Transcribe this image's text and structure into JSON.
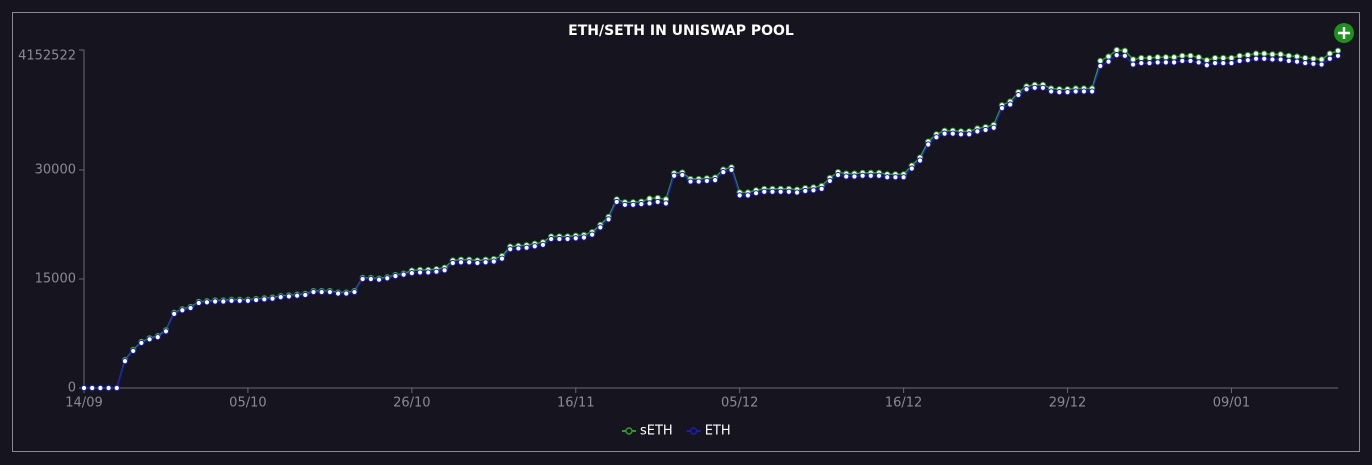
{
  "chart_data": {
    "type": "line",
    "title": "ETH/SETH IN UNISWAP POOL",
    "y_top_label": "4152522",
    "categories": [
      "14/09",
      null,
      null,
      null,
      null,
      null,
      null,
      null,
      null,
      null,
      null,
      null,
      null,
      null,
      null,
      null,
      null,
      null,
      null,
      null,
      "05/10",
      null,
      null,
      null,
      null,
      null,
      null,
      null,
      null,
      null,
      null,
      null,
      null,
      null,
      null,
      null,
      null,
      null,
      null,
      null,
      "26/10",
      null,
      null,
      null,
      null,
      null,
      null,
      null,
      null,
      null,
      null,
      null,
      null,
      null,
      null,
      null,
      null,
      null,
      null,
      null,
      "16/11",
      null,
      null,
      null,
      null,
      null,
      null,
      null,
      null,
      null,
      null,
      null,
      null,
      null,
      null,
      null,
      null,
      null,
      null,
      null,
      "05/12",
      null,
      null,
      null,
      null,
      null,
      null,
      null,
      null,
      null,
      null,
      null,
      null,
      null,
      null,
      null,
      null,
      null,
      null,
      null,
      "16/12",
      null,
      null,
      null,
      null,
      null,
      null,
      null,
      null,
      null,
      null,
      null,
      null,
      null,
      null,
      null,
      null,
      null,
      null,
      null,
      "29/12",
      null,
      null,
      null,
      null,
      null,
      null,
      null,
      null,
      null,
      null,
      null,
      null,
      null,
      null,
      null,
      null,
      null,
      null,
      null,
      "09/01",
      null,
      null,
      null,
      null,
      null,
      null,
      null,
      null,
      null,
      null,
      null,
      null,
      null
    ],
    "series": [
      {
        "name": "sETH",
        "color": "#2f9a2f",
        "values": [
          0,
          0,
          0,
          0,
          0,
          3850,
          5250,
          6350,
          6850,
          7150,
          7950,
          10350,
          10850,
          11150,
          11850,
          11950,
          12050,
          12050,
          12150,
          12150,
          12150,
          12250,
          12350,
          12450,
          12650,
          12750,
          12850,
          12950,
          13350,
          13350,
          13350,
          13150,
          13150,
          13350,
          15150,
          15150,
          15050,
          15250,
          15550,
          15750,
          16150,
          16250,
          16250,
          16350,
          16550,
          17550,
          17650,
          17650,
          17550,
          17650,
          17750,
          18150,
          19450,
          19550,
          19650,
          19850,
          20050,
          20850,
          20850,
          20850,
          20950,
          21050,
          21450,
          22450,
          23550,
          25950,
          25550,
          25550,
          25650,
          26050,
          26150,
          25950,
          29550,
          29650,
          28750,
          28750,
          28850,
          28950,
          30050,
          30350,
          26900,
          26900,
          27200,
          27400,
          27400,
          27400,
          27400,
          27300,
          27500,
          27600,
          27800,
          28900,
          29700,
          29500,
          29500,
          29600,
          29600,
          29600,
          29400,
          29400,
          29400,
          30600,
          31700,
          33900,
          34900,
          35400,
          35400,
          35300,
          35300,
          35700,
          35900,
          36200,
          38900,
          39400,
          40700,
          41500,
          41700,
          41700,
          41200,
          41100,
          41100,
          41200,
          41200,
          41200,
          45000,
          45600,
          46500,
          46400,
          45200,
          45400,
          45400,
          45500,
          45500,
          45500,
          45700,
          45700,
          45500,
          45100,
          45400,
          45400,
          45400,
          45700,
          45800,
          46000,
          46000,
          45900,
          45900,
          45700,
          45600,
          45400,
          45300,
          45200,
          46000,
          46400
        ]
      },
      {
        "name": "ETH",
        "color": "#1c1cb4",
        "values": [
          0,
          0,
          0,
          0,
          0,
          3700,
          5100,
          6200,
          6700,
          7000,
          7800,
          10200,
          10700,
          11000,
          11700,
          11800,
          11900,
          11900,
          12000,
          12000,
          12000,
          12100,
          12200,
          12300,
          12500,
          12600,
          12700,
          12800,
          13200,
          13200,
          13200,
          13000,
          13000,
          13200,
          15000,
          15000,
          14900,
          15100,
          15400,
          15600,
          15800,
          15900,
          15900,
          16000,
          16200,
          17200,
          17300,
          17300,
          17200,
          17300,
          17400,
          17800,
          19100,
          19200,
          19300,
          19500,
          19700,
          20500,
          20500,
          20500,
          20600,
          20700,
          21100,
          22100,
          23200,
          25600,
          25200,
          25200,
          25300,
          25400,
          25600,
          25400,
          29200,
          29300,
          28400,
          28400,
          28500,
          28600,
          29700,
          30000,
          26500,
          26500,
          26800,
          27000,
          27000,
          27000,
          27000,
          26900,
          27100,
          27200,
          27400,
          28500,
          29300,
          29100,
          29100,
          29200,
          29200,
          29200,
          29000,
          29000,
          29000,
          30200,
          31300,
          33500,
          34500,
          35000,
          35000,
          34900,
          34900,
          35300,
          35500,
          35800,
          38500,
          39000,
          40300,
          41100,
          41300,
          41300,
          40800,
          40700,
          40700,
          40800,
          40800,
          40800,
          44300,
          44900,
          45800,
          45700,
          44500,
          44700,
          44700,
          44800,
          44800,
          44800,
          45000,
          45000,
          44800,
          44400,
          44700,
          44700,
          44700,
          45000,
          45100,
          45300,
          45300,
          45200,
          45200,
          45000,
          44900,
          44700,
          44600,
          44500,
          45300,
          45700
        ]
      }
    ],
    "ylim": [
      0,
      46500
    ],
    "yticks": [
      0,
      15000,
      30000
    ],
    "legend": "bottom",
    "grid": false
  }
}
